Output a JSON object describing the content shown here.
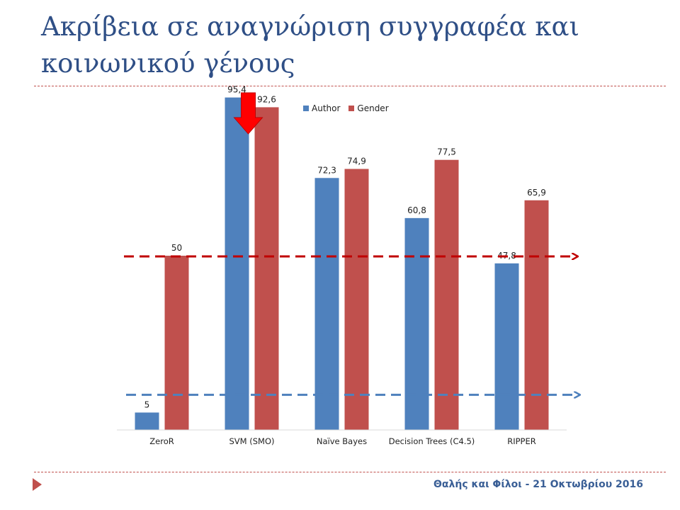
{
  "title": "Ακρίβεια σε αναγνώριση συγγραφέα και κοινωνικού γένους",
  "footer": "Θαλής και Φίλοι - 21 Οκτωβρίου 2016",
  "colors": {
    "author": "#4f81bd",
    "gender": "#c0504d",
    "title": "#2f4f86",
    "red_line": "#c00000",
    "blue_line": "#4f81bd",
    "pointer_arrow": "#ff0000"
  },
  "chart_data": {
    "type": "bar",
    "categories": [
      "ZeroR",
      "SVM (SMO)",
      "Naïve Bayes",
      "Decision Trees (C4.5)",
      "RIPPER"
    ],
    "series": [
      {
        "name": "Author",
        "values": [
          5,
          95.4,
          72.3,
          60.8,
          47.8
        ],
        "labels": [
          "5",
          "95,4",
          "72,3",
          "60,8",
          "47,8"
        ]
      },
      {
        "name": "Gender",
        "values": [
          50,
          92.6,
          74.9,
          77.5,
          65.9
        ],
        "labels": [
          "50",
          "92,6",
          "74,9",
          "77,5",
          "65,9"
        ]
      }
    ],
    "ylim": [
      0,
      100
    ],
    "grid": false,
    "legend": "top",
    "baselines": [
      {
        "series": "Gender",
        "value": 50,
        "style": "dashed arrow"
      },
      {
        "series": "Author",
        "value": 5,
        "style": "dashed arrow"
      }
    ],
    "highlight": {
      "category": "SVM (SMO)",
      "marker": "down-arrow"
    }
  }
}
